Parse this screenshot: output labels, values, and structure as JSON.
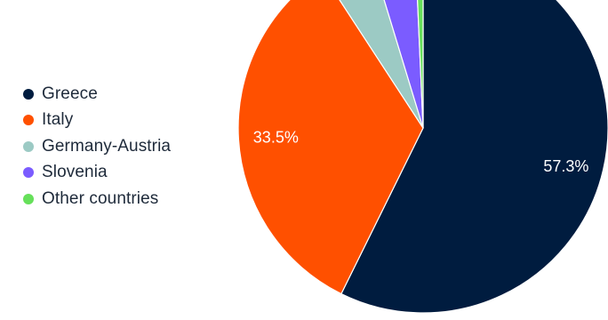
{
  "chart_data": {
    "type": "pie",
    "title": "",
    "legend_position": "left",
    "slices": [
      {
        "label": "Greece",
        "value": 57.3,
        "color": "#001c3f",
        "data_label": "57.3%"
      },
      {
        "label": "Italy",
        "value": 33.5,
        "color": "#ff5000",
        "data_label": "33.5%"
      },
      {
        "label": "Germany-Austria",
        "value": 4.5,
        "color": "#9ccac4",
        "data_label": ""
      },
      {
        "label": "Slovenia",
        "value": 4.0,
        "color": "#7b5cff",
        "data_label": ""
      },
      {
        "label": "Other countries",
        "value": 0.7,
        "color": "#66e05a",
        "data_label": ""
      }
    ]
  }
}
